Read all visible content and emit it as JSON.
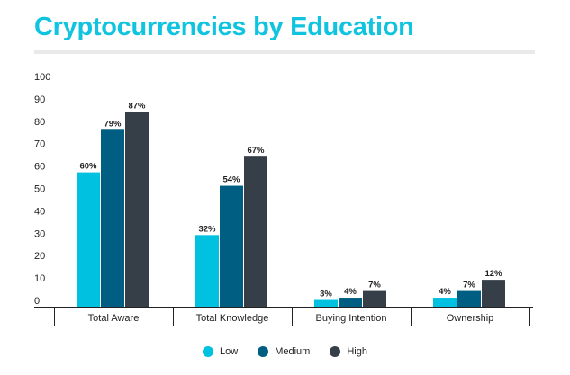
{
  "page": {
    "title": "Cryptocurrencies by Education"
  },
  "colors": {
    "title": "#10c4df",
    "low": "#00c2e0",
    "medium": "#005e82",
    "high": "#363f47"
  },
  "chart_data": {
    "type": "bar",
    "title": "Cryptocurrencies by Education",
    "categories": [
      "Total Aware",
      "Total Knowledge",
      "Buying Intention",
      "Ownership"
    ],
    "series": [
      {
        "name": "Low",
        "color": "#00c2e0",
        "values": [
          60,
          32,
          3,
          4
        ],
        "labels": [
          "60%",
          "32%",
          "3%",
          "4%"
        ]
      },
      {
        "name": "Medium",
        "color": "#005e82",
        "values": [
          79,
          54,
          4,
          7
        ],
        "labels": [
          "79%",
          "54%",
          "4%",
          "7%"
        ]
      },
      {
        "name": "High",
        "color": "#363f47",
        "values": [
          87,
          67,
          7,
          12
        ],
        "labels": [
          "87%",
          "67%",
          "7%",
          "12%"
        ]
      }
    ],
    "yticks": [
      "0",
      "10",
      "20",
      "30",
      "40",
      "50",
      "60",
      "70",
      "80",
      "90",
      "100"
    ],
    "ylim": [
      0,
      100
    ],
    "grid": false,
    "legend_position": "bottom"
  }
}
